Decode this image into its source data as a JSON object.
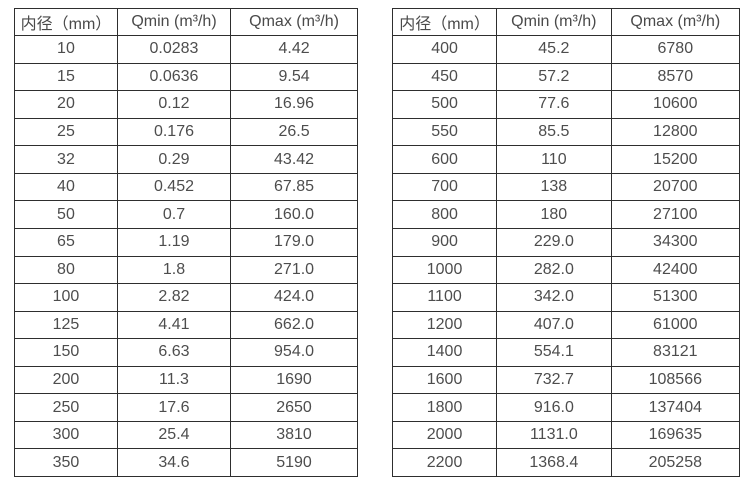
{
  "colors": {
    "border": "#2e2e2e",
    "text": "#4d4d4d",
    "background": "#ffffff"
  },
  "left_table": {
    "headers": [
      "内径（mm）",
      "Qmin (m³/h)",
      "Qmax (m³/h)"
    ],
    "rows": [
      [
        "10",
        "0.0283",
        "4.42"
      ],
      [
        "15",
        "0.0636",
        "9.54"
      ],
      [
        "20",
        "0.12",
        "16.96"
      ],
      [
        "25",
        "0.176",
        "26.5"
      ],
      [
        "32",
        "0.29",
        "43.42"
      ],
      [
        "40",
        "0.452",
        "67.85"
      ],
      [
        "50",
        "0.7",
        "160.0"
      ],
      [
        "65",
        "1.19",
        "179.0"
      ],
      [
        "80",
        "1.8",
        "271.0"
      ],
      [
        "100",
        "2.82",
        "424.0"
      ],
      [
        "125",
        "4.41",
        "662.0"
      ],
      [
        "150",
        "6.63",
        "954.0"
      ],
      [
        "200",
        "11.3",
        "1690"
      ],
      [
        "250",
        "17.6",
        "2650"
      ],
      [
        "300",
        "25.4",
        "3810"
      ],
      [
        "350",
        "34.6",
        "5190"
      ]
    ]
  },
  "right_table": {
    "headers": [
      "内径（mm）",
      "Qmin (m³/h)",
      "Qmax (m³/h)"
    ],
    "rows": [
      [
        "400",
        "45.2",
        "6780"
      ],
      [
        "450",
        "57.2",
        "8570"
      ],
      [
        "500",
        "77.6",
        "10600"
      ],
      [
        "550",
        "85.5",
        "12800"
      ],
      [
        "600",
        "110",
        "15200"
      ],
      [
        "700",
        "138",
        "20700"
      ],
      [
        "800",
        "180",
        "27100"
      ],
      [
        "900",
        "229.0",
        "34300"
      ],
      [
        "1000",
        "282.0",
        "42400"
      ],
      [
        "1100",
        "342.0",
        "51300"
      ],
      [
        "1200",
        "407.0",
        "61000"
      ],
      [
        "1400",
        "554.1",
        "83121"
      ],
      [
        "1600",
        "732.7",
        "108566"
      ],
      [
        "1800",
        "916.0",
        "137404"
      ],
      [
        "2000",
        "1131.0",
        "169635"
      ],
      [
        "2200",
        "1368.4",
        "205258"
      ]
    ]
  }
}
